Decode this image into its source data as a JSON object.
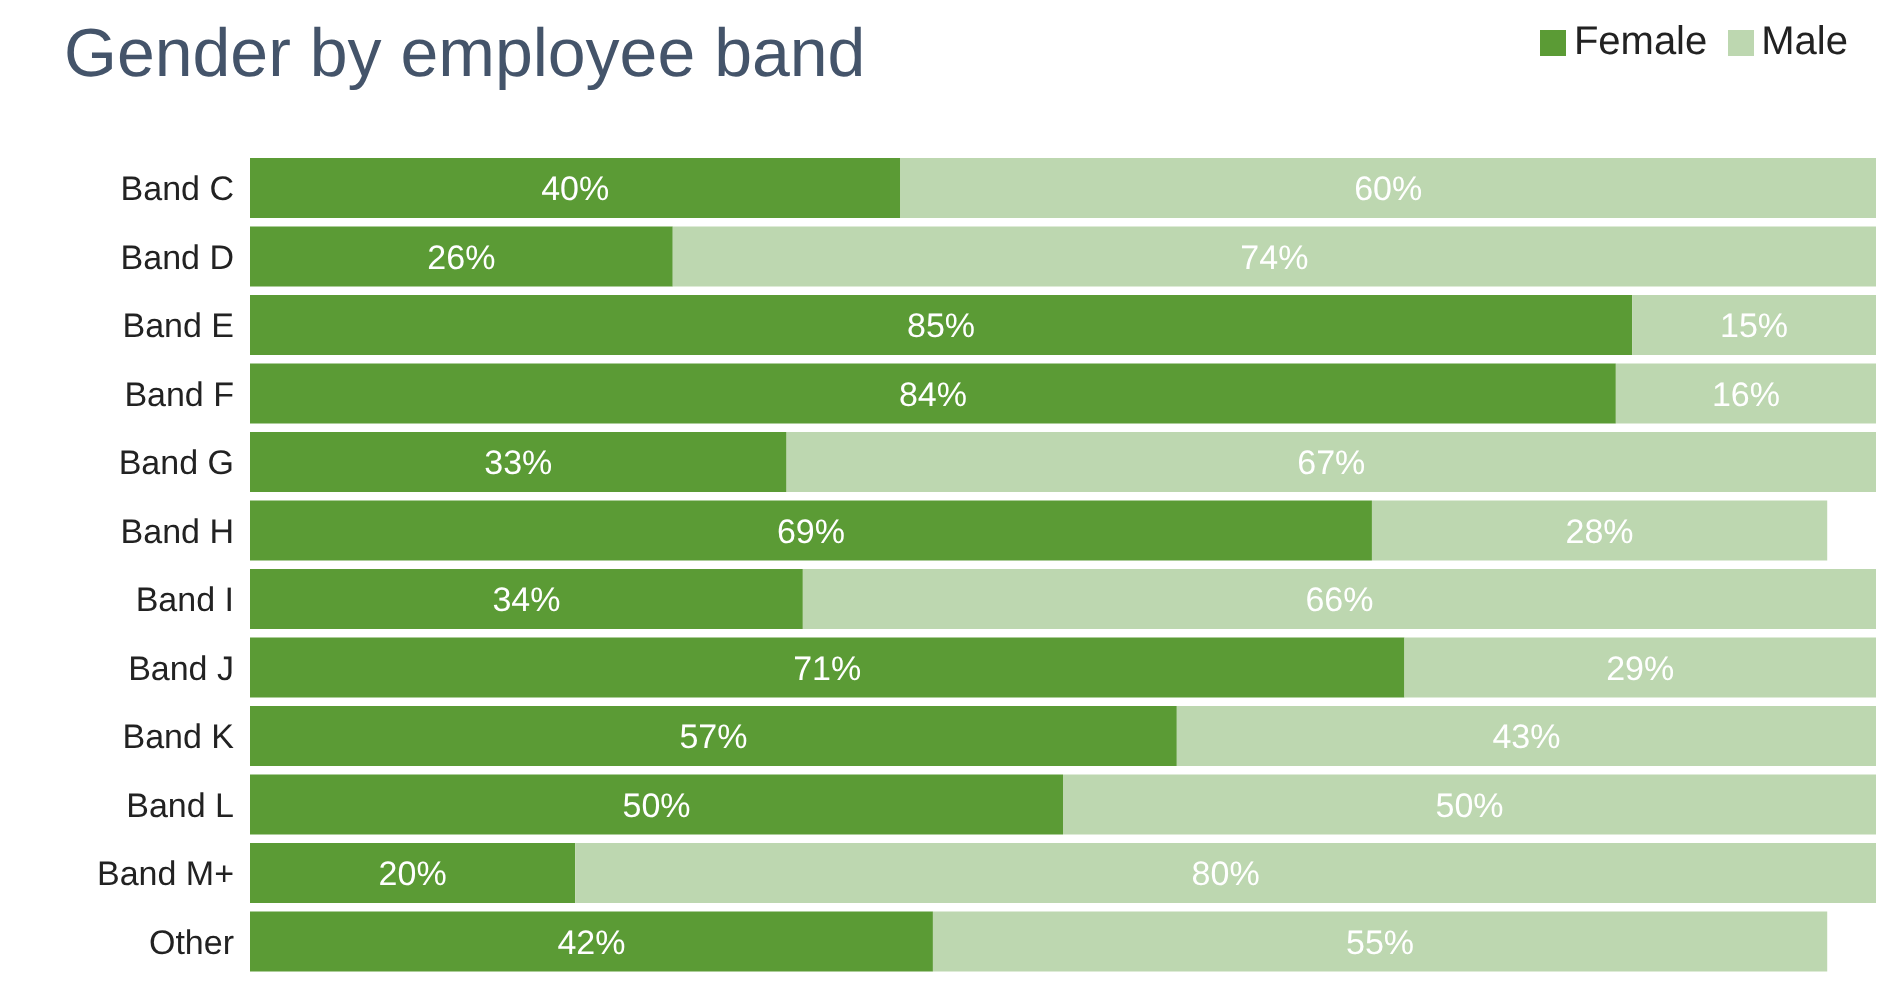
{
  "chart_data": {
    "type": "bar",
    "title": "Gender by employee band",
    "orientation": "horizontal",
    "stacked": true,
    "legend": "top right",
    "grid": false,
    "tick_labels": "y",
    "xlim": [
      0,
      100
    ],
    "categories": [
      "Band C",
      "Band D",
      "Band E",
      "Band F",
      "Band G",
      "Band H",
      "Band I",
      "Band J",
      "Band K",
      "Band L",
      "Band M+",
      "Other"
    ],
    "series": [
      {
        "name": "Female",
        "color": "#5b9b35",
        "values": [
          40,
          26,
          85,
          84,
          33,
          69,
          34,
          71,
          57,
          50,
          20,
          42
        ],
        "value_labels": [
          "40%",
          "26%",
          "85%",
          "84%",
          "33%",
          "69%",
          "34%",
          "71%",
          "57%",
          "50%",
          "20%",
          "42%"
        ]
      },
      {
        "name": "Male",
        "color": "#bdd7b0",
        "values": [
          60,
          74,
          15,
          16,
          67,
          28,
          66,
          29,
          43,
          50,
          80,
          55
        ],
        "value_labels": [
          "60%",
          "74%",
          "15%",
          "16%",
          "67%",
          "28%",
          "66%",
          "29%",
          "43%",
          "50%",
          "80%",
          "55%"
        ]
      }
    ]
  }
}
